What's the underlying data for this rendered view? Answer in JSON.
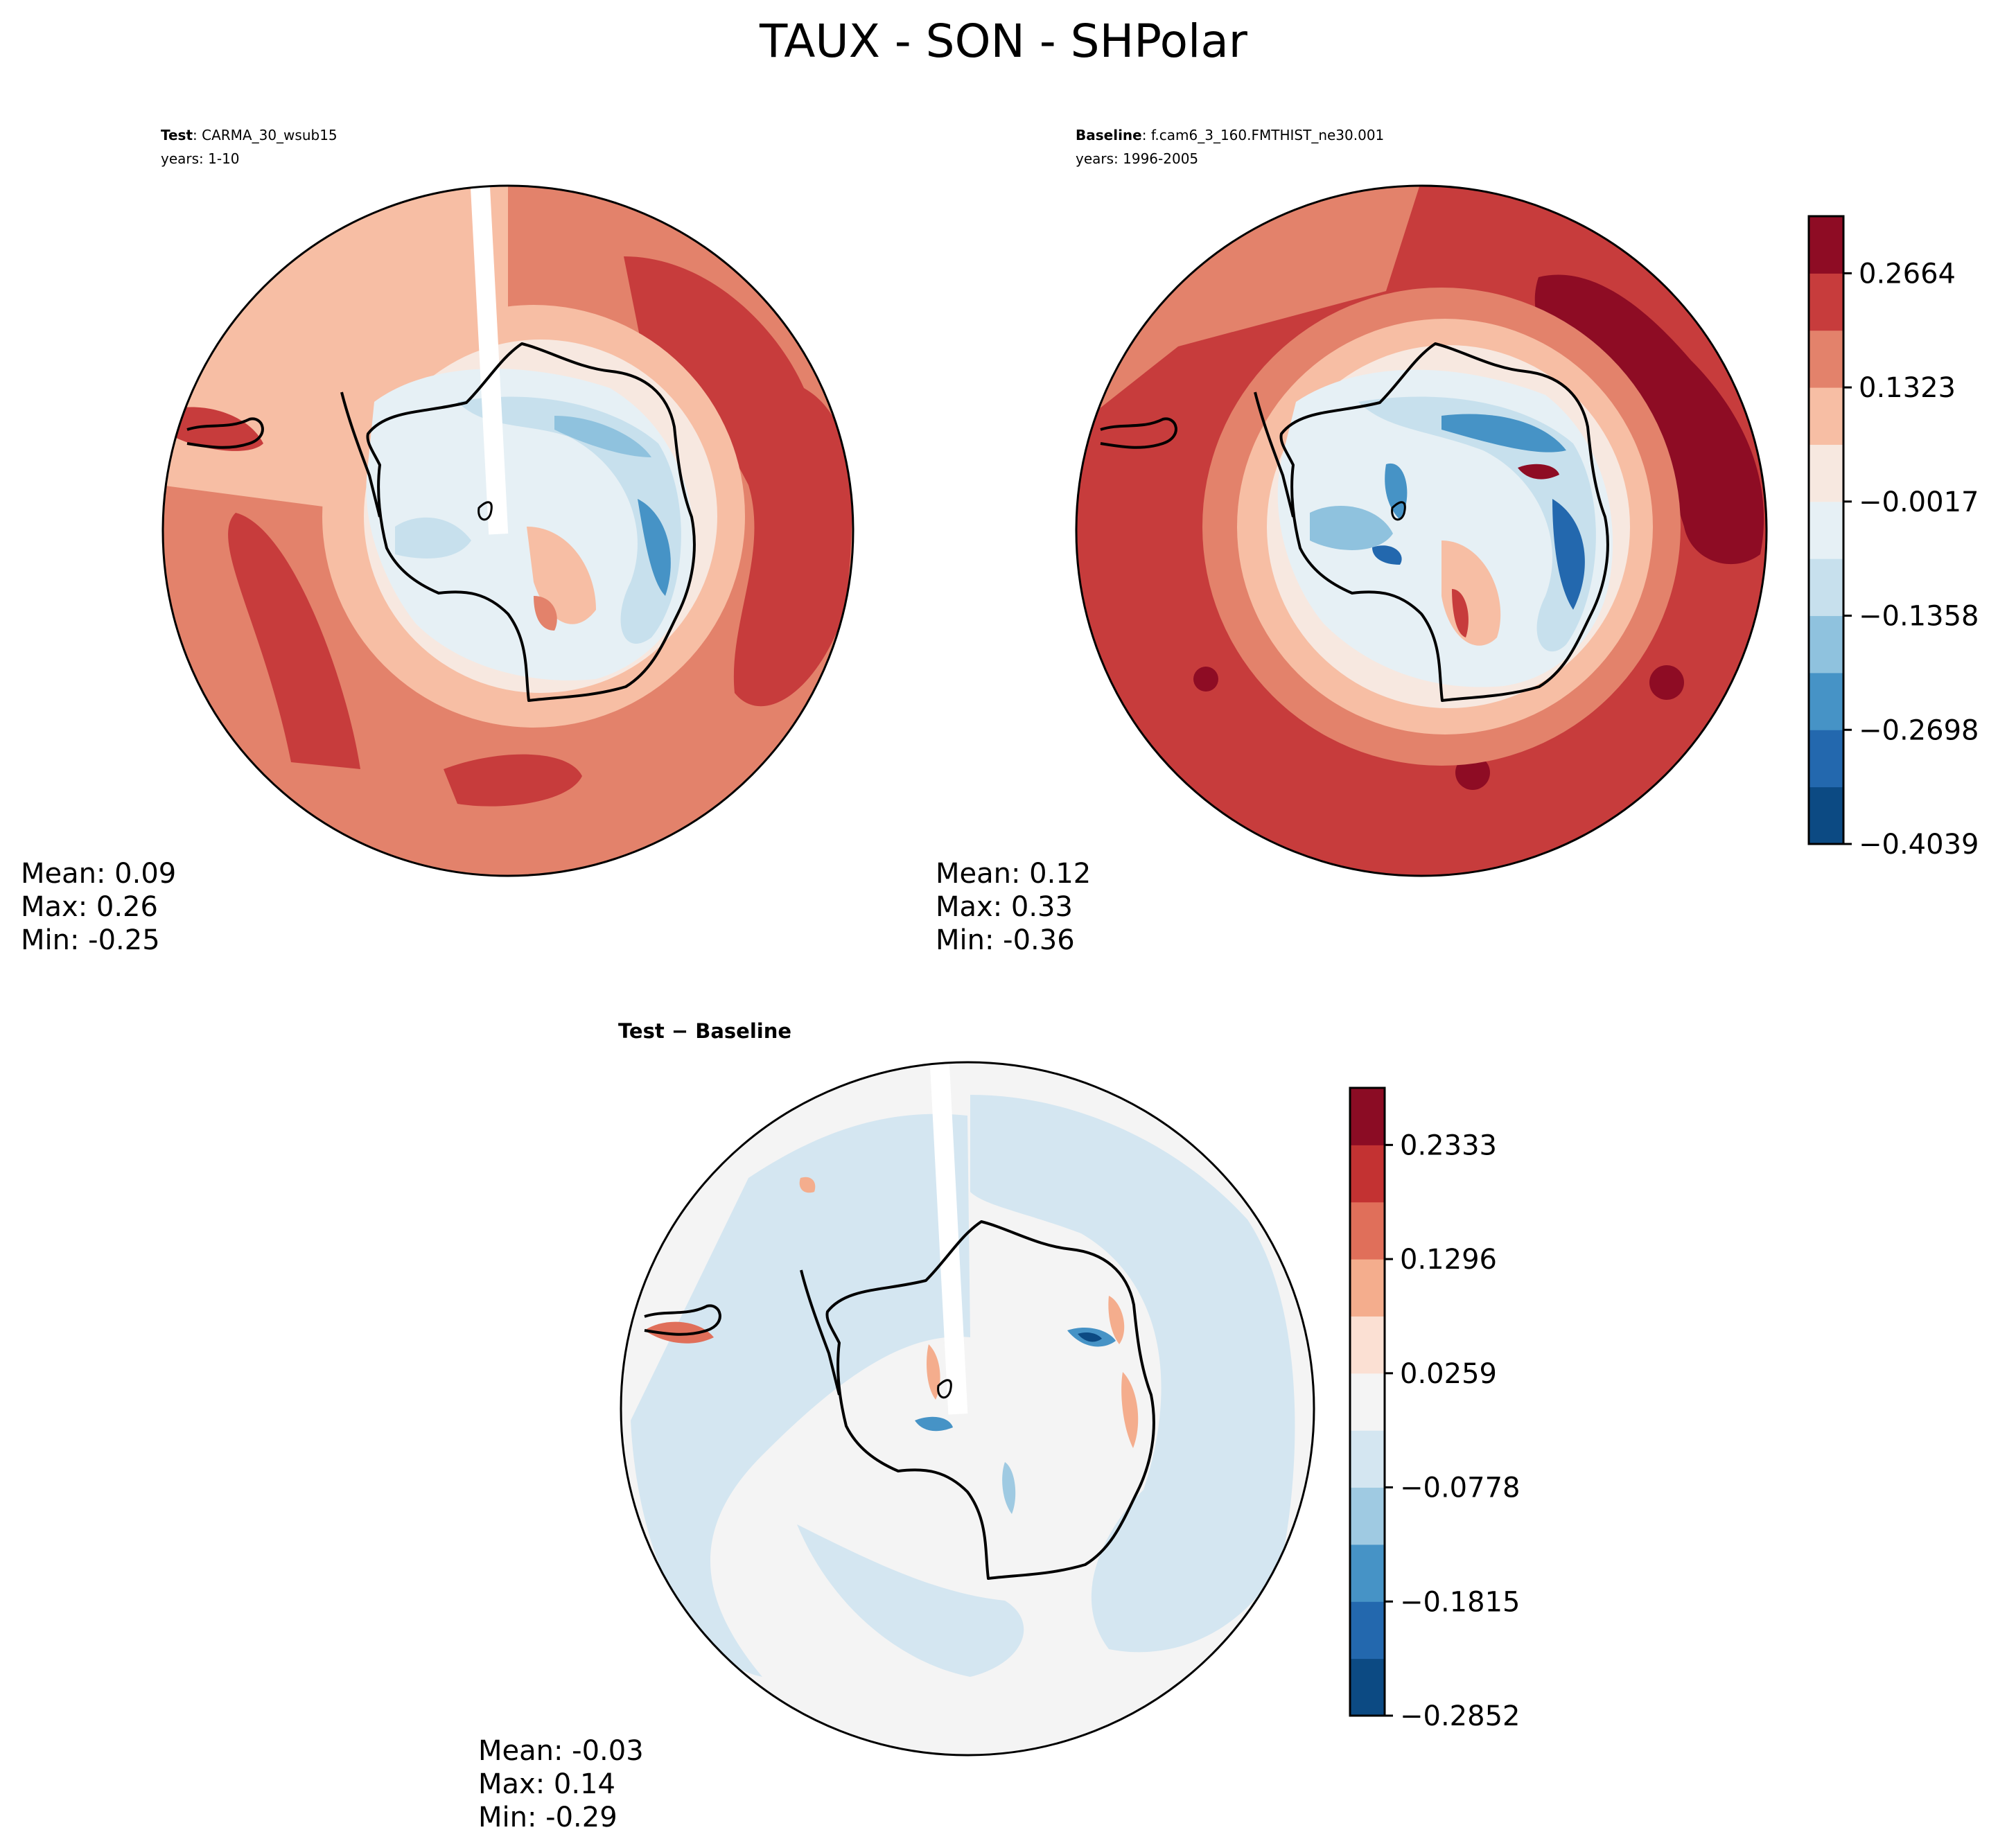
{
  "figure": {
    "title": "TAUX - SON - SHPolar"
  },
  "panels": {
    "test": {
      "label_bold": "Test",
      "label_rest": ": CARMA_30_wsub15",
      "years": "years: 1-10",
      "stats": {
        "mean": "Mean:  0.09",
        "max": "Max:  0.26",
        "min": "Min: -0.25"
      }
    },
    "baseline": {
      "label_bold": "Baseline",
      "label_rest": ": f.cam6_3_160.FMTHIST_ne30.001",
      "years": "years: 1996-2005",
      "stats": {
        "mean": "Mean:  0.12",
        "max": "Max:  0.33",
        "min": "Min: -0.36"
      }
    },
    "diff": {
      "title": "Test − Baseline",
      "stats": {
        "mean": "Mean: -0.03",
        "max": "Max:  0.14",
        "min": "Min: -0.29"
      }
    }
  },
  "colorbars": {
    "main": {
      "ticks": [
        "0.2664",
        "0.1323",
        "−0.0017",
        "−0.1358",
        "−0.2698",
        "−0.4039"
      ],
      "tick_values": [
        0.2664,
        0.1323,
        -0.0017,
        -0.1358,
        -0.2698,
        -0.4039
      ],
      "colors": [
        "#0c4a83",
        "#2368ae",
        "#4693c6",
        "#8fc2de",
        "#c7e0ed",
        "#e6f0f5",
        "#f7e8e0",
        "#f7bea4",
        "#e3826b",
        "#c73c3c",
        "#8e0c24"
      ]
    },
    "diff": {
      "ticks": [
        "0.2333",
        "0.1296",
        "0.0259",
        "−0.0778",
        "−0.1815",
        "−0.2852"
      ],
      "tick_values": [
        0.2333,
        0.1296,
        0.0259,
        -0.0778,
        -0.1815,
        -0.2852
      ],
      "colors": [
        "#0c4a83",
        "#2368ae",
        "#4693c6",
        "#9fcae2",
        "#d4e6f1",
        "#f4f4f4",
        "#fbe0d3",
        "#f4ad8d",
        "#e06f5a",
        "#c33232",
        "#8b0c24"
      ]
    }
  },
  "colors": {
    "land_outline": "#000000",
    "test_fill_outer": "#e3826b",
    "baseline_fill_outer": "#c73c3c",
    "diff_fill": "#f4f4f4"
  }
}
